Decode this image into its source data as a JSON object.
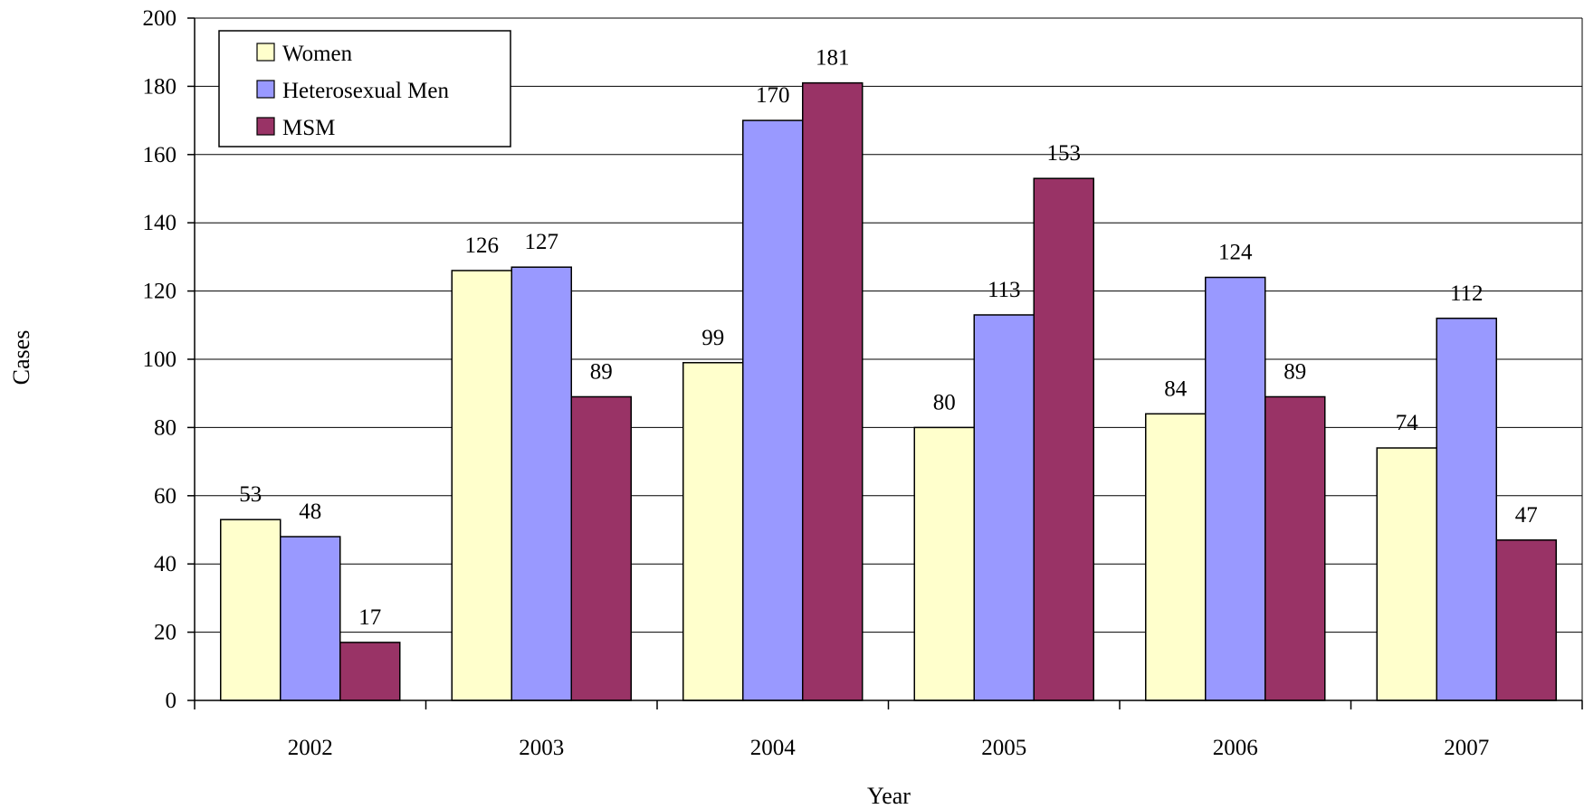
{
  "chart_data": {
    "type": "bar",
    "categories": [
      "2002",
      "2003",
      "2004",
      "2005",
      "2006",
      "2007"
    ],
    "series": [
      {
        "name": "Women",
        "color": "#FFFFCC",
        "values": [
          53,
          126,
          99,
          80,
          84,
          74
        ]
      },
      {
        "name": "Heterosexual Men",
        "color": "#9999FF",
        "values": [
          48,
          127,
          170,
          113,
          124,
          112
        ]
      },
      {
        "name": "MSM",
        "color": "#993366",
        "values": [
          17,
          89,
          181,
          153,
          89,
          47
        ]
      }
    ],
    "xlabel": "Year",
    "ylabel": "Cases",
    "ylim": [
      0,
      200
    ],
    "yticks": [
      0,
      20,
      40,
      60,
      80,
      100,
      120,
      140,
      160,
      180,
      200
    ],
    "grid": true,
    "legend_position": "top-left",
    "data_labels": true
  }
}
